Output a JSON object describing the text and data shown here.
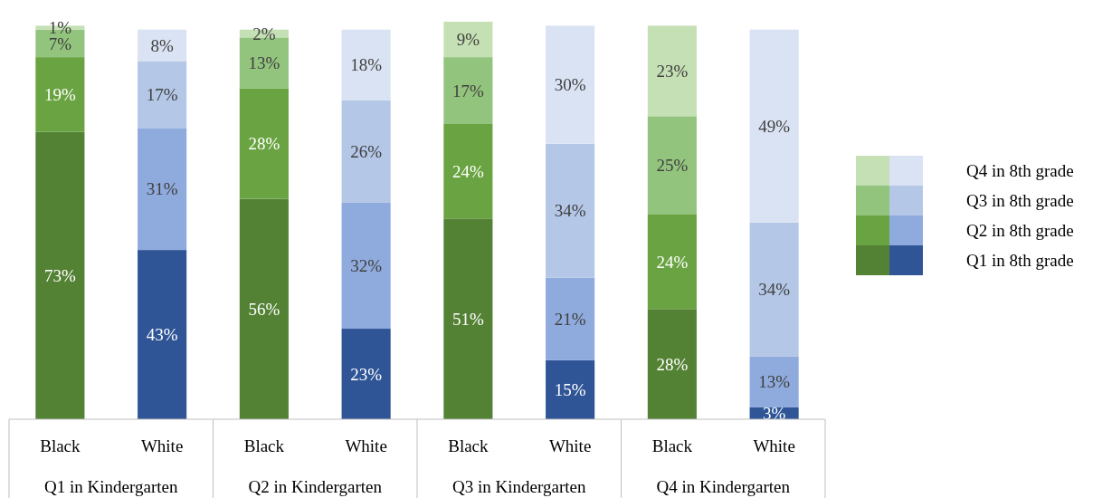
{
  "chart_data": {
    "type": "bar",
    "stacked": true,
    "legend": "right",
    "categories": [
      "Black",
      "White",
      "Black",
      "White",
      "Black",
      "White",
      "Black",
      "White"
    ],
    "annotations": [
      "Q1 in Kindergarten",
      "Q2 in Kindergarten",
      "Q3 in Kindergarten",
      "Q4 in Kindergarten"
    ],
    "series": [
      {
        "name": "Q1 in 8th grade",
        "colors": [
          "#548235",
          "#2f5597",
          "#548235",
          "#2f5597",
          "#548235",
          "#2f5597",
          "#548235",
          "#2f5597"
        ],
        "values": [
          73,
          43,
          56,
          23,
          51,
          15,
          28,
          3
        ],
        "value_labels": [
          "73%",
          "43%",
          "56%",
          "23%",
          "51%",
          "15%",
          "28%",
          "3%"
        ]
      },
      {
        "name": "Q2 in 8th grade",
        "colors": [
          "#6aa341",
          "#8faadc",
          "#6aa341",
          "#8faadc",
          "#6aa341",
          "#8faadc",
          "#6aa341",
          "#8faadc"
        ],
        "values": [
          19,
          31,
          28,
          32,
          24,
          21,
          24,
          13
        ],
        "value_labels": [
          "19%",
          "31%",
          "28%",
          "32%",
          "24%",
          "21%",
          "24%",
          "13%"
        ]
      },
      {
        "name": "Q3 in 8th grade",
        "colors": [
          "#93c47d",
          "#b4c7e7",
          "#93c47d",
          "#b4c7e7",
          "#93c47d",
          "#b4c7e7",
          "#93c47d",
          "#b4c7e7"
        ],
        "values": [
          7,
          17,
          13,
          26,
          17,
          34,
          25,
          34
        ],
        "value_labels": [
          "7%",
          "17%",
          "13%",
          "26%",
          "17%",
          "34%",
          "25%",
          "34%"
        ]
      },
      {
        "name": "Q4 in 8th grade",
        "colors": [
          "#c5e0b4",
          "#dae3f3",
          "#c5e0b4",
          "#dae3f3",
          "#c5e0b4",
          "#dae3f3",
          "#c5e0b4",
          "#dae3f3"
        ],
        "values": [
          1,
          8,
          2,
          18,
          9,
          30,
          23,
          49
        ],
        "value_labels": [
          "1%",
          "8%",
          "2%",
          "18%",
          "9%",
          "30%",
          "23%",
          "49%"
        ]
      }
    ]
  }
}
